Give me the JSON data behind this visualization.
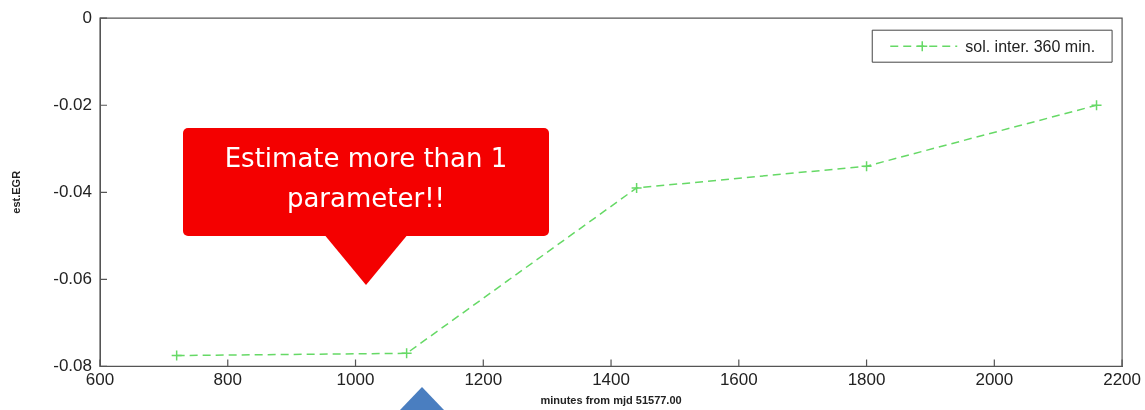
{
  "chart_data": {
    "type": "line",
    "x": [
      720,
      1080,
      1440,
      1800,
      2160
    ],
    "series": [
      {
        "name": "sol. inter. 360 min.",
        "color": "#66d966",
        "values": [
          -0.0775,
          -0.077,
          -0.039,
          -0.034,
          -0.02
        ]
      }
    ],
    "xlim": [
      600,
      2200
    ],
    "xticks": [
      600,
      800,
      1000,
      1200,
      1400,
      1600,
      1800,
      2000,
      2200
    ],
    "ylim": [
      -0.08,
      0
    ],
    "yticks": [
      -0.08,
      -0.06,
      -0.04,
      -0.02,
      0
    ],
    "xlabel": "minutes from mjd 51577.00",
    "ylabel": "est.EGR",
    "annotations": [
      "Estimate more than 1 parameter!!"
    ],
    "grid": false,
    "legend": "top right",
    "marker": "cross",
    "line_style": "dashed"
  }
}
